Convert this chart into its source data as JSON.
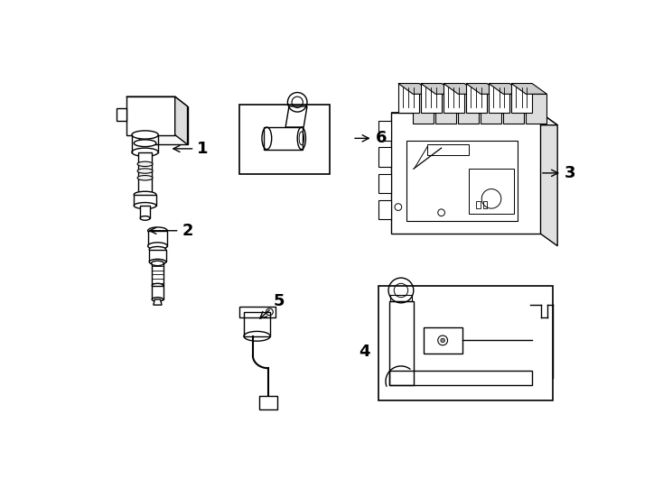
{
  "background_color": "#ffffff",
  "line_color": "#000000",
  "label_color": "#000000",
  "fig_width": 7.34,
  "fig_height": 5.4,
  "dpi": 100
}
